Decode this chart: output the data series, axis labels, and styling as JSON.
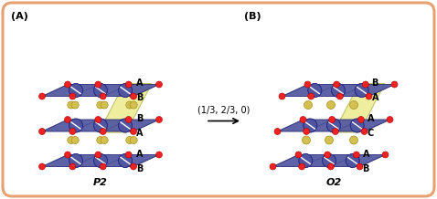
{
  "fig_width": 4.78,
  "fig_height": 2.18,
  "dpi": 100,
  "bg_color": "#FFFFFF",
  "border_color": "#E8A070",
  "border_lw": 2.2,
  "panel_A_label": "(A)",
  "panel_B_label": "(B)",
  "P2_label": "P2",
  "O2_label": "O2",
  "arrow_text": "(1/3, 2/3, 0)",
  "slab_color": "#5055A0",
  "slab_edge_color": "#30357A",
  "highlight_color": "#EEEE99",
  "highlight_edge": "#BBBB55",
  "na_color": "#D4C050",
  "na_edge_color": "#A09020",
  "oxy_color": "#EE2222",
  "oxy_edge_color": "#AA0000",
  "label_fontsize": 7,
  "panel_fontsize": 8,
  "arrow_fontsize": 7,
  "title_fontsize": 8
}
